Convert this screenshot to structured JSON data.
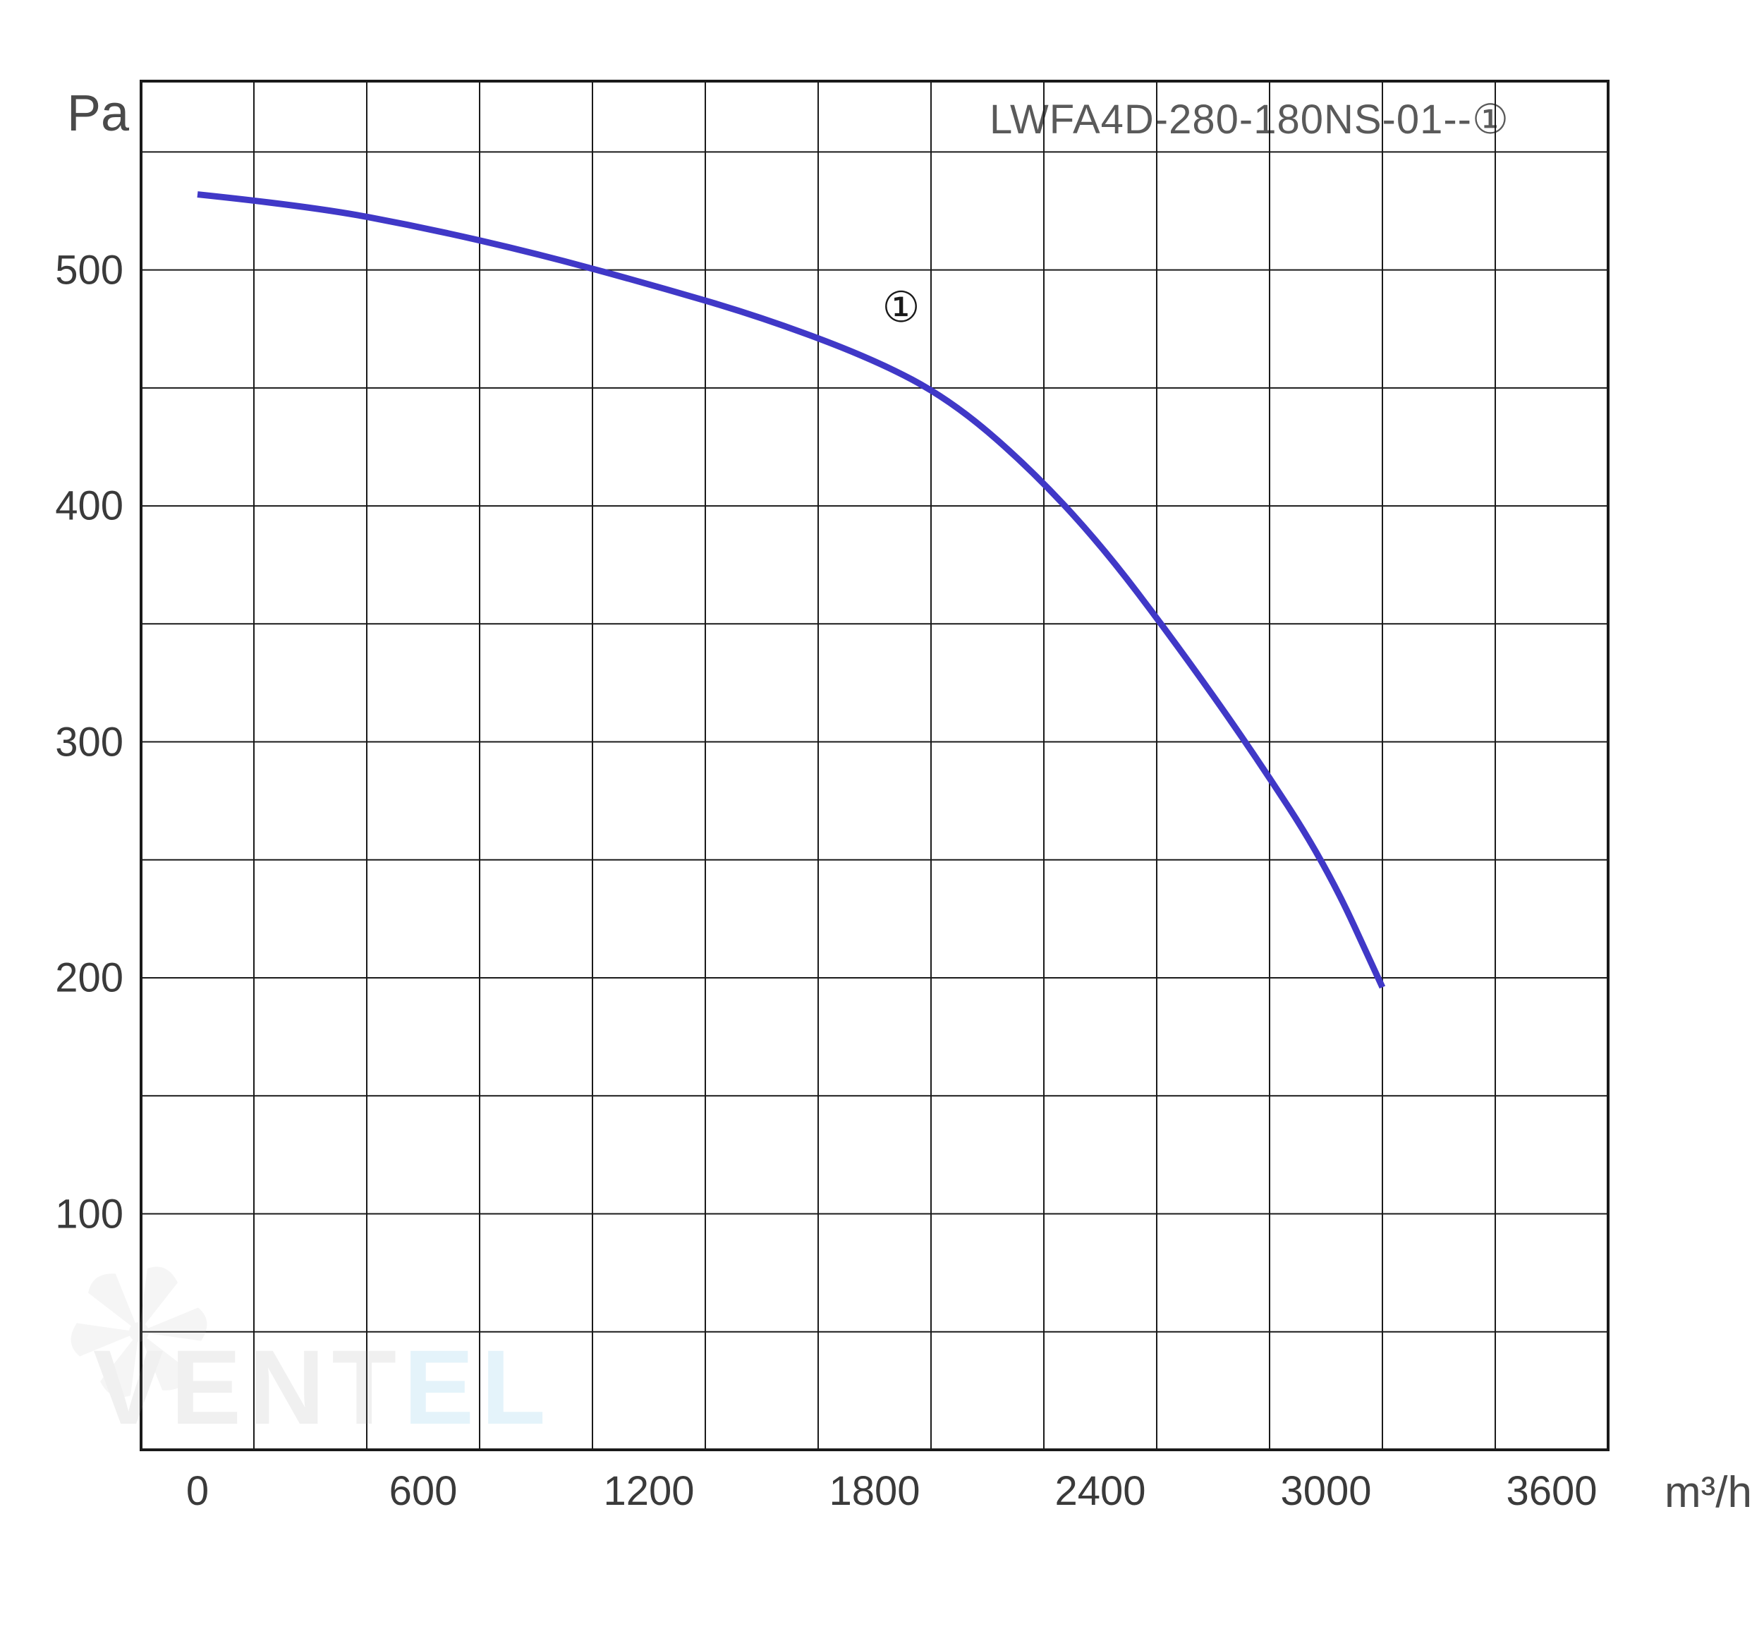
{
  "chart": {
    "type": "line",
    "y_unit_label": "Pa",
    "x_unit_label": "m³/h",
    "legend_label": "LWFA4D-280-180NS-01--①",
    "background_color": "#ffffff",
    "grid_color": "#1a1a1a",
    "text_color": "#3a3a3a",
    "title_color": "#4a4a4a",
    "axis_fontsize_pt": 42,
    "legend_fontsize_pt": 40,
    "x_range": [
      -150,
      3750
    ],
    "y_range": [
      0,
      580
    ],
    "x_ticks": [
      0,
      600,
      1200,
      1800,
      2400,
      3000,
      3600
    ],
    "y_ticks": [
      100,
      200,
      300,
      400,
      500
    ],
    "x_gridlines": [
      -150,
      150,
      450,
      750,
      1050,
      1350,
      1650,
      1950,
      2250,
      2550,
      2850,
      3150,
      3450,
      3750
    ],
    "y_gridlines": [
      0,
      50,
      100,
      150,
      200,
      250,
      300,
      350,
      400,
      450,
      500,
      550,
      580
    ],
    "series": [
      {
        "name": "curve-1",
        "label": "①",
        "color": "#4038c7",
        "line_width": 9,
        "annotation": {
          "x": 1820,
          "y": 472
        },
        "points": [
          {
            "x": 0,
            "y": 532
          },
          {
            "x": 300,
            "y": 527
          },
          {
            "x": 600,
            "y": 518
          },
          {
            "x": 900,
            "y": 507
          },
          {
            "x": 1200,
            "y": 494
          },
          {
            "x": 1500,
            "y": 480
          },
          {
            "x": 1800,
            "y": 462
          },
          {
            "x": 2000,
            "y": 445
          },
          {
            "x": 2200,
            "y": 418
          },
          {
            "x": 2400,
            "y": 384
          },
          {
            "x": 2600,
            "y": 342
          },
          {
            "x": 2800,
            "y": 297
          },
          {
            "x": 3000,
            "y": 248
          },
          {
            "x": 3150,
            "y": 196
          }
        ]
      }
    ],
    "watermark": {
      "text_parts": [
        {
          "text": "VENT",
          "class": "wm-v"
        },
        {
          "text": "EL",
          "class": "wm-el"
        }
      ]
    }
  }
}
